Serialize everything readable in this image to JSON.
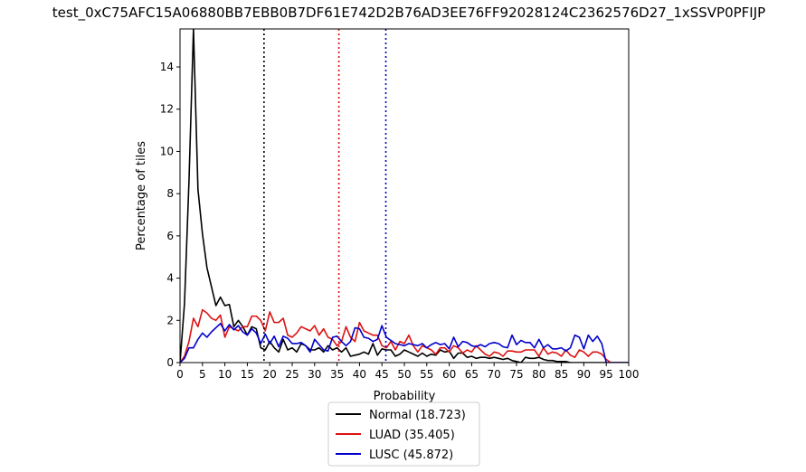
{
  "chart_data": {
    "type": "line",
    "title": "test_0xC75AFC15A06880BB7EBB0B7DF61E742D2B76AD3EE76FF92028124C2362576D27_1xSSVP0PFIJP",
    "xlabel": "Probability",
    "ylabel": "Percentage of tiles",
    "xlim": [
      0,
      100
    ],
    "ylim": [
      0,
      15.8
    ],
    "xticks": [
      0,
      5,
      10,
      15,
      20,
      25,
      30,
      35,
      40,
      45,
      50,
      55,
      60,
      65,
      70,
      75,
      80,
      85,
      90,
      95,
      100
    ],
    "yticks": [
      0,
      2,
      4,
      6,
      8,
      10,
      12,
      14
    ],
    "grid": false,
    "legend_position": "bottom-center, below axes",
    "vlines": [
      {
        "x": 18.723,
        "color": "#000000",
        "style": "dotted"
      },
      {
        "x": 35.405,
        "color": "#dd1111",
        "style": "dotted"
      },
      {
        "x": 45.872,
        "color": "#0000cc",
        "style": "dotted"
      }
    ],
    "series": [
      {
        "name": "Normal (18.723)",
        "color": "#000000",
        "x": [
          0,
          1,
          2,
          3,
          4,
          5,
          6,
          7,
          8,
          9,
          10,
          11,
          12,
          13,
          14,
          15,
          16,
          17,
          18,
          19,
          20,
          21,
          22,
          23,
          24,
          25,
          26,
          27,
          28,
          29,
          30,
          31,
          32,
          33,
          34,
          35,
          36,
          37,
          38,
          39,
          40,
          41,
          42,
          43,
          44,
          45,
          46,
          47,
          48,
          49,
          50,
          51,
          52,
          53,
          54,
          55,
          56,
          57,
          58,
          59,
          60,
          61,
          62,
          63,
          64,
          65,
          66,
          67,
          68,
          69,
          70,
          71,
          72,
          73,
          74,
          75,
          76,
          77,
          78,
          79,
          80,
          81,
          82,
          83,
          84,
          85,
          86,
          87,
          88,
          89,
          90,
          91,
          92,
          93,
          94,
          95,
          96,
          97,
          98,
          99,
          100
        ],
        "values": [
          0,
          2.8,
          8.6,
          15.8,
          8.2,
          6.1,
          4.5,
          3.6,
          2.7,
          3.1,
          2.7,
          2.75,
          1.7,
          2.0,
          1.7,
          1.3,
          1.7,
          1.6,
          0.7,
          0.6,
          1.0,
          0.7,
          0.5,
          1.1,
          0.6,
          0.7,
          0.5,
          0.9,
          0.8,
          0.6,
          0.6,
          0.7,
          0.5,
          0.8,
          0.6,
          0.7,
          0.5,
          0.7,
          0.3,
          0.35,
          0.4,
          0.5,
          0.4,
          0.9,
          0.35,
          0.65,
          0.6,
          0.6,
          0.3,
          0.4,
          0.6,
          0.5,
          0.4,
          0.3,
          0.45,
          0.3,
          0.4,
          0.35,
          0.6,
          0.5,
          0.55,
          0.2,
          0.45,
          0.45,
          0.25,
          0.3,
          0.2,
          0.25,
          0.25,
          0.2,
          0.25,
          0.2,
          0.15,
          0.2,
          0.1,
          0.05,
          0,
          0.25,
          0.2,
          0.2,
          0.25,
          0.15,
          0.1,
          0.1,
          0.05,
          0.05,
          0.05,
          0,
          0,
          0,
          0,
          0,
          0,
          0,
          0,
          0,
          0,
          0,
          0,
          0,
          0
        ]
      },
      {
        "name": "LUAD (35.405)",
        "color": "#dd1111",
        "x": [
          0,
          1,
          2,
          3,
          4,
          5,
          6,
          7,
          8,
          9,
          10,
          11,
          12,
          13,
          14,
          15,
          16,
          17,
          18,
          19,
          20,
          21,
          22,
          23,
          24,
          25,
          26,
          27,
          28,
          29,
          30,
          31,
          32,
          33,
          34,
          35,
          36,
          37,
          38,
          39,
          40,
          41,
          42,
          43,
          44,
          45,
          46,
          47,
          48,
          49,
          50,
          51,
          52,
          53,
          54,
          55,
          56,
          57,
          58,
          59,
          60,
          61,
          62,
          63,
          64,
          65,
          66,
          67,
          68,
          69,
          70,
          71,
          72,
          73,
          74,
          75,
          76,
          77,
          78,
          79,
          80,
          81,
          82,
          83,
          84,
          85,
          86,
          87,
          88,
          89,
          90,
          91,
          92,
          93,
          94,
          95,
          96,
          97,
          98,
          99,
          100
        ],
        "values": [
          0,
          0.3,
          1.0,
          2.1,
          1.7,
          2.5,
          2.35,
          2.1,
          2.0,
          2.25,
          1.2,
          1.7,
          1.6,
          1.5,
          1.7,
          1.7,
          2.2,
          2.2,
          2.0,
          1.5,
          2.4,
          1.9,
          1.9,
          2.1,
          1.3,
          1.2,
          1.4,
          1.7,
          1.6,
          1.5,
          1.75,
          1.3,
          1.6,
          1.2,
          1.1,
          0.8,
          1.0,
          1.7,
          1.2,
          1.0,
          1.9,
          1.5,
          1.4,
          1.3,
          1.3,
          0.8,
          0.7,
          1.0,
          0.6,
          1.0,
          0.9,
          1.3,
          0.8,
          0.5,
          0.8,
          0.7,
          0.6,
          0.4,
          0.7,
          0.7,
          0.5,
          0.8,
          0.7,
          0.45,
          0.6,
          0.5,
          0.8,
          0.6,
          0.4,
          0.3,
          0.5,
          0.45,
          0.3,
          0.55,
          0.55,
          0.5,
          0.5,
          0.6,
          0.6,
          0.6,
          0.3,
          0.7,
          0.4,
          0.5,
          0.45,
          0.3,
          0.6,
          0.35,
          0.25,
          0.6,
          0.5,
          0.3,
          0.5,
          0.5,
          0.4,
          0.15,
          0,
          0,
          0,
          0,
          0
        ]
      },
      {
        "name": "LUSC (45.872)",
        "color": "#0000cc",
        "x": [
          0,
          1,
          2,
          3,
          4,
          5,
          6,
          7,
          8,
          9,
          10,
          11,
          12,
          13,
          14,
          15,
          16,
          17,
          18,
          19,
          20,
          21,
          22,
          23,
          24,
          25,
          26,
          27,
          28,
          29,
          30,
          31,
          32,
          33,
          34,
          35,
          36,
          37,
          38,
          39,
          40,
          41,
          42,
          43,
          44,
          45,
          46,
          47,
          48,
          49,
          50,
          51,
          52,
          53,
          54,
          55,
          56,
          57,
          58,
          59,
          60,
          61,
          62,
          63,
          64,
          65,
          66,
          67,
          68,
          69,
          70,
          71,
          72,
          73,
          74,
          75,
          76,
          77,
          78,
          79,
          80,
          81,
          82,
          83,
          84,
          85,
          86,
          87,
          88,
          89,
          90,
          91,
          92,
          93,
          94,
          95,
          96,
          97,
          98,
          99,
          100
        ],
        "values": [
          0,
          0.2,
          0.7,
          0.7,
          1.1,
          1.4,
          1.2,
          1.45,
          1.65,
          1.85,
          1.5,
          1.8,
          1.55,
          1.75,
          1.45,
          1.3,
          1.6,
          1.4,
          0.9,
          1.35,
          0.9,
          1.25,
          0.75,
          1.25,
          1.15,
          0.9,
          0.9,
          0.95,
          0.8,
          0.5,
          1.1,
          0.85,
          0.6,
          0.55,
          1.2,
          1.25,
          1.0,
          0.8,
          1.0,
          1.65,
          1.6,
          1.2,
          1.15,
          1.0,
          1.1,
          1.75,
          1.2,
          1.05,
          0.9,
          0.85,
          0.8,
          0.9,
          0.85,
          0.8,
          0.9,
          0.7,
          0.85,
          0.95,
          0.85,
          0.9,
          0.65,
          1.2,
          0.75,
          1.0,
          0.95,
          0.8,
          0.75,
          0.85,
          0.75,
          0.9,
          0.95,
          0.9,
          0.75,
          0.7,
          1.3,
          0.85,
          1.05,
          0.95,
          0.95,
          0.7,
          1.1,
          0.7,
          0.85,
          0.65,
          0.65,
          0.7,
          0.55,
          0.7,
          1.3,
          1.2,
          0.65,
          1.3,
          1.0,
          1.25,
          0.9,
          0,
          0,
          0,
          0,
          0,
          0
        ]
      }
    ]
  }
}
